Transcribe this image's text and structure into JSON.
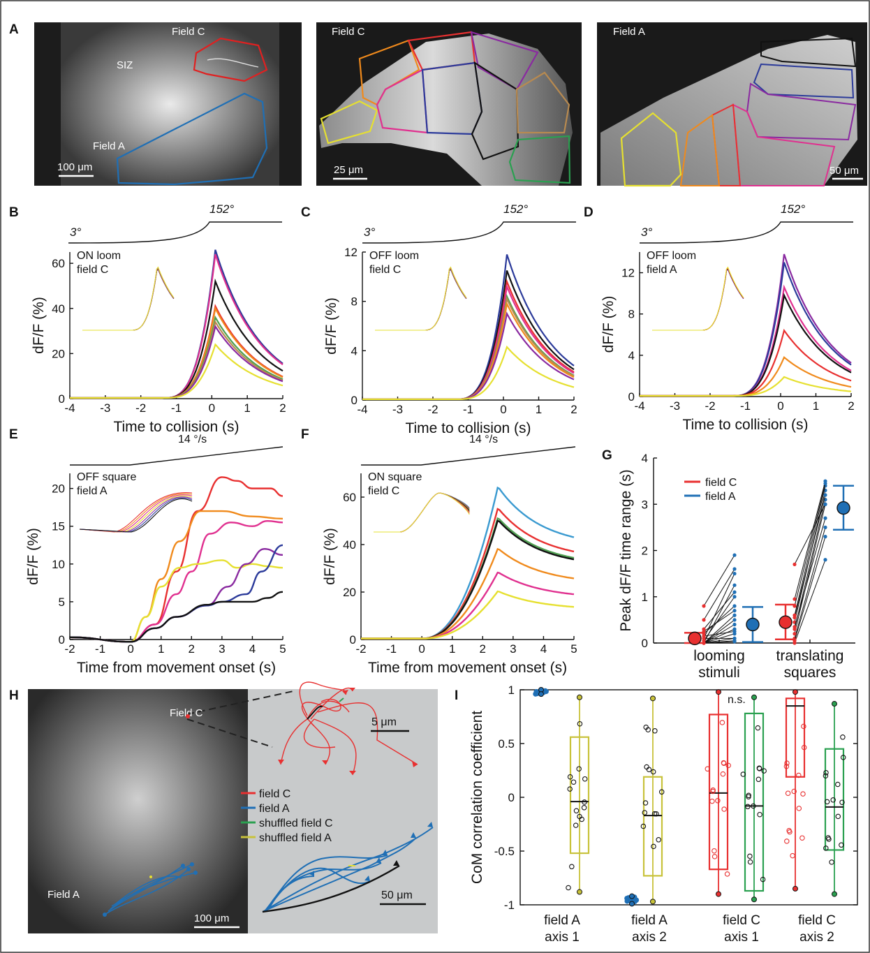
{
  "panel_labels": [
    "A",
    "B",
    "C",
    "D",
    "E",
    "F",
    "G",
    "H",
    "I"
  ],
  "panel_A": {
    "img1": {
      "labels": [
        "Field C",
        "SIZ",
        "Field A"
      ],
      "scale": "100 μm"
    },
    "img2": {
      "label": "Field C",
      "scale": "25 μm"
    },
    "img3": {
      "label": "Field A",
      "scale": "50 μm"
    }
  },
  "loom": {
    "start": "3°",
    "end": "152°"
  },
  "translate": {
    "speed": "14 °/s"
  },
  "chart_data": [
    {
      "panel": "B",
      "type": "line",
      "inset": [
        "ON loom",
        "field C"
      ],
      "xlabel": "Time to collision (s)",
      "ylabel": "dF/F (%)",
      "xlim": [
        -4,
        2
      ],
      "ylim": [
        0,
        65
      ],
      "xticks": [
        "-4",
        "-3",
        "-2",
        "-1",
        "0",
        "1",
        "2"
      ],
      "yticks": [
        "0",
        "20",
        "40",
        "60"
      ],
      "peaks": [
        {
          "color": "#2b3a9a",
          "peak": 66
        },
        {
          "color": "#e0308f",
          "peak": 64
        },
        {
          "color": "#111111",
          "peak": 52
        },
        {
          "color": "#e83030",
          "peak": 41
        },
        {
          "color": "#f08a1c",
          "peak": 40
        },
        {
          "color": "#4fa050",
          "peak": 36
        },
        {
          "color": "#b88a50",
          "peak": 34
        },
        {
          "color": "#8a2aa0",
          "peak": 32
        },
        {
          "color": "#e6e030",
          "peak": 24
        }
      ]
    },
    {
      "panel": "C",
      "type": "line",
      "inset": [
        "OFF loom",
        "field C"
      ],
      "xlabel": "Time to collision (s)",
      "ylabel": "dF/F (%)",
      "xlim": [
        -4,
        2
      ],
      "ylim": [
        0,
        12
      ],
      "xticks": [
        "-4",
        "-3",
        "-2",
        "-1",
        "0",
        "1",
        "2"
      ],
      "yticks": [
        "0",
        "4",
        "8",
        "12"
      ],
      "peaks": [
        {
          "color": "#2b3a9a",
          "peak": 11.8
        },
        {
          "color": "#111111",
          "peak": 10.5
        },
        {
          "color": "#e83030",
          "peak": 9.6
        },
        {
          "color": "#e0308f",
          "peak": 9.2
        },
        {
          "color": "#4fa050",
          "peak": 8.4
        },
        {
          "color": "#b88a50",
          "peak": 8.2
        },
        {
          "color": "#f08a1c",
          "peak": 7.8
        },
        {
          "color": "#8a2aa0",
          "peak": 7.0
        },
        {
          "color": "#e6e030",
          "peak": 4.3
        }
      ]
    },
    {
      "panel": "D",
      "type": "line",
      "inset": [
        "OFF loom",
        "field A"
      ],
      "xlabel": "Time to collision (s)",
      "ylabel": "dF/F (%)",
      "xlim": [
        -4,
        2
      ],
      "ylim": [
        0,
        14
      ],
      "xticks": [
        "-4",
        "-3",
        "-2",
        "-1",
        "0",
        "1",
        "2"
      ],
      "yticks": [
        "0",
        "4",
        "8",
        "12"
      ],
      "peaks": [
        {
          "color": "#8a2aa0",
          "peak": 13.8
        },
        {
          "color": "#2b3a9a",
          "peak": 13.0
        },
        {
          "color": "#e0308f",
          "peak": 10.6
        },
        {
          "color": "#111111",
          "peak": 9.8
        },
        {
          "color": "#e83030",
          "peak": 6.4
        },
        {
          "color": "#f08a1c",
          "peak": 3.8
        },
        {
          "color": "#e6e030",
          "peak": 1.9
        }
      ]
    },
    {
      "panel": "E",
      "type": "line",
      "inset": [
        "OFF square",
        "field A"
      ],
      "xlabel": "Time from movement onset (s)",
      "ylabel": "dF/F (%)",
      "xlim": [
        -2,
        5
      ],
      "ylim": [
        0,
        22
      ],
      "xticks": [
        "-2",
        "-1",
        "0",
        "1",
        "2",
        "3",
        "4",
        "5"
      ],
      "yticks": [
        "0",
        "5",
        "10",
        "15",
        "20"
      ],
      "curves": [
        {
          "color": "#e83030",
          "points": [
            [
              -2,
              0.3
            ],
            [
              0,
              -0.3
            ],
            [
              0.8,
              2
            ],
            [
              1.5,
              9
            ],
            [
              2.2,
              17
            ],
            [
              3,
              21.5
            ],
            [
              3.5,
              21
            ],
            [
              4,
              20
            ],
            [
              4.6,
              20
            ],
            [
              5,
              19
            ]
          ]
        },
        {
          "color": "#f08a1c",
          "points": [
            [
              -2,
              0.3
            ],
            [
              0,
              -0.3
            ],
            [
              0.5,
              3
            ],
            [
              1,
              8
            ],
            [
              1.6,
              13
            ],
            [
              2.3,
              17
            ],
            [
              3,
              17
            ],
            [
              4,
              16.3
            ],
            [
              5,
              16
            ]
          ]
        },
        {
          "color": "#e0308f",
          "points": [
            [
              -2,
              0.3
            ],
            [
              0,
              -0.3
            ],
            [
              0.8,
              2
            ],
            [
              1.5,
              6
            ],
            [
              2,
              9
            ],
            [
              2.6,
              14
            ],
            [
              3.3,
              15.5
            ],
            [
              4,
              15
            ],
            [
              4.5,
              15.7
            ],
            [
              5,
              15.5
            ]
          ]
        },
        {
          "color": "#e6e030",
          "points": [
            [
              -2,
              0.3
            ],
            [
              0,
              -0.3
            ],
            [
              0.5,
              3
            ],
            [
              1,
              7
            ],
            [
              1.6,
              9.5
            ],
            [
              2.2,
              10
            ],
            [
              3,
              10.5
            ],
            [
              3.5,
              9.5
            ],
            [
              4,
              10
            ],
            [
              4.5,
              9.7
            ],
            [
              5,
              9.5
            ]
          ]
        },
        {
          "color": "#8a2aa0",
          "points": [
            [
              -2,
              0.3
            ],
            [
              0,
              -0.3
            ],
            [
              0.8,
              1.5
            ],
            [
              1.5,
              3
            ],
            [
              2.5,
              4.5
            ],
            [
              3.2,
              7
            ],
            [
              3.8,
              10
            ],
            [
              4.4,
              12
            ],
            [
              5,
              11.2
            ]
          ]
        },
        {
          "color": "#2b3a9a",
          "points": [
            [
              -2,
              0.3
            ],
            [
              0,
              -0.3
            ],
            [
              0.8,
              1.5
            ],
            [
              1.5,
              3
            ],
            [
              2.5,
              4.5
            ],
            [
              3,
              5
            ],
            [
              3.8,
              6
            ],
            [
              4.3,
              9
            ],
            [
              5,
              12.5
            ]
          ]
        },
        {
          "color": "#111111",
          "points": [
            [
              -2,
              0.3
            ],
            [
              0,
              -0.3
            ],
            [
              0.8,
              1.5
            ],
            [
              1.5,
              3
            ],
            [
              2.5,
              4.6
            ],
            [
              3,
              5
            ],
            [
              4,
              5
            ],
            [
              4.5,
              5.5
            ],
            [
              5,
              6.3
            ]
          ]
        }
      ]
    },
    {
      "panel": "F",
      "type": "line",
      "inset": [
        "ON square",
        "field C"
      ],
      "xlabel": "Time from movement onset (s)",
      "ylabel": "dF/F (%)",
      "xlim": [
        -2,
        5
      ],
      "ylim": [
        0,
        70
      ],
      "xticks": [
        "-2",
        "-1",
        "0",
        "1",
        "2",
        "3",
        "4",
        "5"
      ],
      "yticks": [
        "0",
        "20",
        "40",
        "60"
      ],
      "peaks": [
        {
          "color": "#3a9ad0",
          "peak": 64
        },
        {
          "color": "#e83030",
          "peak": 55
        },
        {
          "color": "#4fa050",
          "peak": 51
        },
        {
          "color": "#111111",
          "peak": 50
        },
        {
          "color": "#f08a1c",
          "peak": 38
        },
        {
          "color": "#e0308f",
          "peak": 28
        },
        {
          "color": "#e6e030",
          "peak": 20
        }
      ]
    },
    {
      "panel": "G",
      "type": "scatter",
      "ylabel": "Peak dF/F time range (s)",
      "ylim": [
        0,
        4
      ],
      "yticks": [
        "0",
        "1",
        "2",
        "3",
        "4"
      ],
      "categories": [
        [
          "looming",
          "stimuli"
        ],
        [
          "translating",
          "squares"
        ]
      ],
      "legend": [
        {
          "name": "field C",
          "color": "#e83030"
        },
        {
          "name": "field A",
          "color": "#1f6fb5"
        }
      ],
      "summary": [
        {
          "cat": 0,
          "series": "field C",
          "mean": 0.1,
          "lo": 0.0,
          "hi": 0.22
        },
        {
          "cat": 0,
          "series": "field A",
          "mean": 0.4,
          "lo": 0.02,
          "hi": 0.78
        },
        {
          "cat": 1,
          "series": "field C",
          "mean": 0.45,
          "lo": 0.08,
          "hi": 0.83
        },
        {
          "cat": 1,
          "series": "field A",
          "mean": 2.92,
          "lo": 2.45,
          "hi": 3.4
        }
      ],
      "pairs": [
        [
          [
            0,
            0.03
          ],
          [
            0,
            0.05
          ],
          [
            0,
            0.1
          ],
          [
            0,
            0.2
          ],
          [
            0,
            0.3
          ],
          [
            0,
            0.5
          ],
          [
            0,
            0.6
          ],
          [
            0.25,
            0.7
          ],
          [
            0.2,
            0.8
          ],
          [
            0,
            1.25
          ],
          [
            0.5,
            1.6
          ],
          [
            0.8,
            1.9
          ],
          [
            0.1,
            1.5
          ],
          [
            0.05,
            1.0
          ],
          [
            0,
            0.4
          ],
          [
            0.15,
            0.25
          ],
          [
            0.1,
            0.1
          ],
          [
            0.3,
            1.1
          ]
        ],
        [
          [
            0,
            1.8
          ],
          [
            0.1,
            2.5
          ],
          [
            0.2,
            3.0
          ],
          [
            0.3,
            3.1
          ],
          [
            0.45,
            3.3
          ],
          [
            0.55,
            3.2
          ],
          [
            0.6,
            3.4
          ],
          [
            0.95,
            3.5
          ],
          [
            1.7,
            3.0
          ],
          [
            0.05,
            2.3
          ],
          [
            0.35,
            2.7
          ],
          [
            0.8,
            3.45
          ]
        ]
      ]
    },
    {
      "panel": "I",
      "type": "box",
      "ylabel": "CoM correlation coefficient",
      "ylim": [
        -1,
        1
      ],
      "yticks": [
        "-1",
        "-0.5",
        "0",
        "0.5",
        "1"
      ],
      "categories": [
        [
          "field A",
          "axis 1"
        ],
        [
          "field A",
          "axis 2"
        ],
        [
          "field C",
          "axis 1"
        ],
        [
          "field C",
          "axis 2"
        ]
      ],
      "annotation": "n.s.",
      "boxes": [
        {
          "group": 0,
          "kind": "real",
          "color": "#1f6fb5",
          "q1": 0.97,
          "median": 0.98,
          "q3": 0.99,
          "lo": 0.96,
          "hi": 1.0
        },
        {
          "group": 0,
          "kind": "shuffled",
          "color": "#c8c23a",
          "q1": -0.52,
          "median": -0.04,
          "q3": 0.56,
          "lo": -0.88,
          "hi": 0.93
        },
        {
          "group": 1,
          "kind": "real",
          "color": "#1f6fb5",
          "q1": -0.97,
          "median": -0.96,
          "q3": -0.94,
          "lo": -0.99,
          "hi": -0.92
        },
        {
          "group": 1,
          "kind": "shuffled",
          "color": "#c8c23a",
          "q1": -0.73,
          "median": -0.17,
          "q3": 0.19,
          "lo": -0.97,
          "hi": 0.92
        },
        {
          "group": 2,
          "kind": "real",
          "color": "#e83030",
          "q1": -0.67,
          "median": 0.04,
          "q3": 0.77,
          "lo": -0.9,
          "hi": 0.98
        },
        {
          "group": 2,
          "kind": "shuffled",
          "color": "#2aa050",
          "q1": -0.87,
          "median": -0.08,
          "q3": 0.78,
          "lo": -0.95,
          "hi": 0.93
        },
        {
          "group": 3,
          "kind": "real",
          "color": "#e83030",
          "q1": 0.19,
          "median": 0.85,
          "q3": 0.92,
          "lo": -0.85,
          "hi": 0.98
        },
        {
          "group": 3,
          "kind": "shuffled",
          "color": "#2aa050",
          "q1": -0.49,
          "median": -0.09,
          "q3": 0.45,
          "lo": -0.9,
          "hi": 0.87
        }
      ]
    }
  ],
  "panel_H": {
    "labels": [
      "Field C",
      "Field A"
    ],
    "scale_main": "100 μm",
    "scale_c": "5 μm",
    "scale_a": "50 μm",
    "legend": [
      {
        "name": "field C",
        "color": "#e83030"
      },
      {
        "name": "field A",
        "color": "#1f6fb5"
      },
      {
        "name": "shuffled field C",
        "color": "#2aa050"
      },
      {
        "name": "shuffled field A",
        "color": "#c8c23a"
      }
    ]
  }
}
